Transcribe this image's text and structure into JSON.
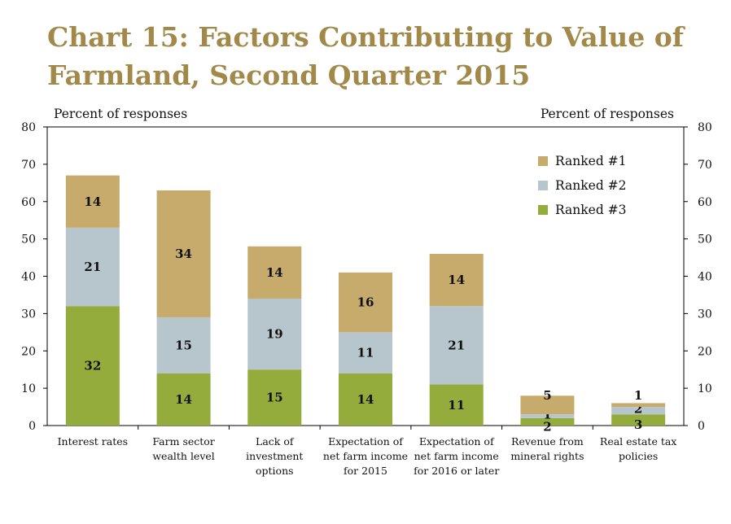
{
  "title": "Chart 15: Factors Contributing to Value of Farmland, Second Quarter 2015",
  "chart_data": {
    "type": "bar",
    "stacked": true,
    "title": "Chart 15: Factors Contributing to Value of Farmland, Second Quarter 2015",
    "ylabel_left": "Percent of responses",
    "ylabel_right": "Percent of responses",
    "ylim": [
      0,
      80
    ],
    "yticks": [
      0,
      10,
      20,
      30,
      40,
      50,
      60,
      70,
      80
    ],
    "grid": false,
    "legend_position": "top-right",
    "categories": [
      [
        "Interest rates"
      ],
      [
        "Farm sector",
        "wealth level"
      ],
      [
        "Lack of",
        "investment",
        "options"
      ],
      [
        "Expectation of",
        "net farm income",
        "for 2015"
      ],
      [
        "Expectation of",
        "net farm income",
        "for 2016 or later"
      ],
      [
        "Revenue from",
        "mineral rights"
      ],
      [
        "Real estate tax",
        "policies"
      ]
    ],
    "series": [
      {
        "name": "Ranked #3",
        "color": "#93ac3b",
        "values": [
          32,
          14,
          15,
          14,
          11,
          2,
          3
        ]
      },
      {
        "name": "Ranked #2",
        "color": "#b7c6cc",
        "values": [
          21,
          15,
          19,
          11,
          21,
          1,
          2
        ]
      },
      {
        "name": "Ranked #1",
        "color": "#c6ab6c",
        "values": [
          14,
          34,
          14,
          16,
          14,
          5,
          1
        ]
      }
    ],
    "legend_order": [
      "Ranked #1",
      "Ranked #2",
      "Ranked #3"
    ]
  }
}
